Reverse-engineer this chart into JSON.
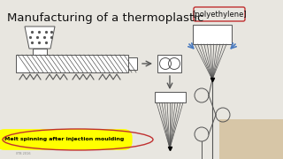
{
  "title": "Manufacturing of a thermoplastic",
  "polyethylene_label": "[polyethylene]",
  "bottom_label": "Melt spinning after injection moulding",
  "bg_color": "#e8e6e0",
  "diagram_color": "#555555",
  "blue_color": "#4a7abf",
  "red_color": "#c03030",
  "yellow_color": "#ffff00",
  "white_color": "#ffffff"
}
